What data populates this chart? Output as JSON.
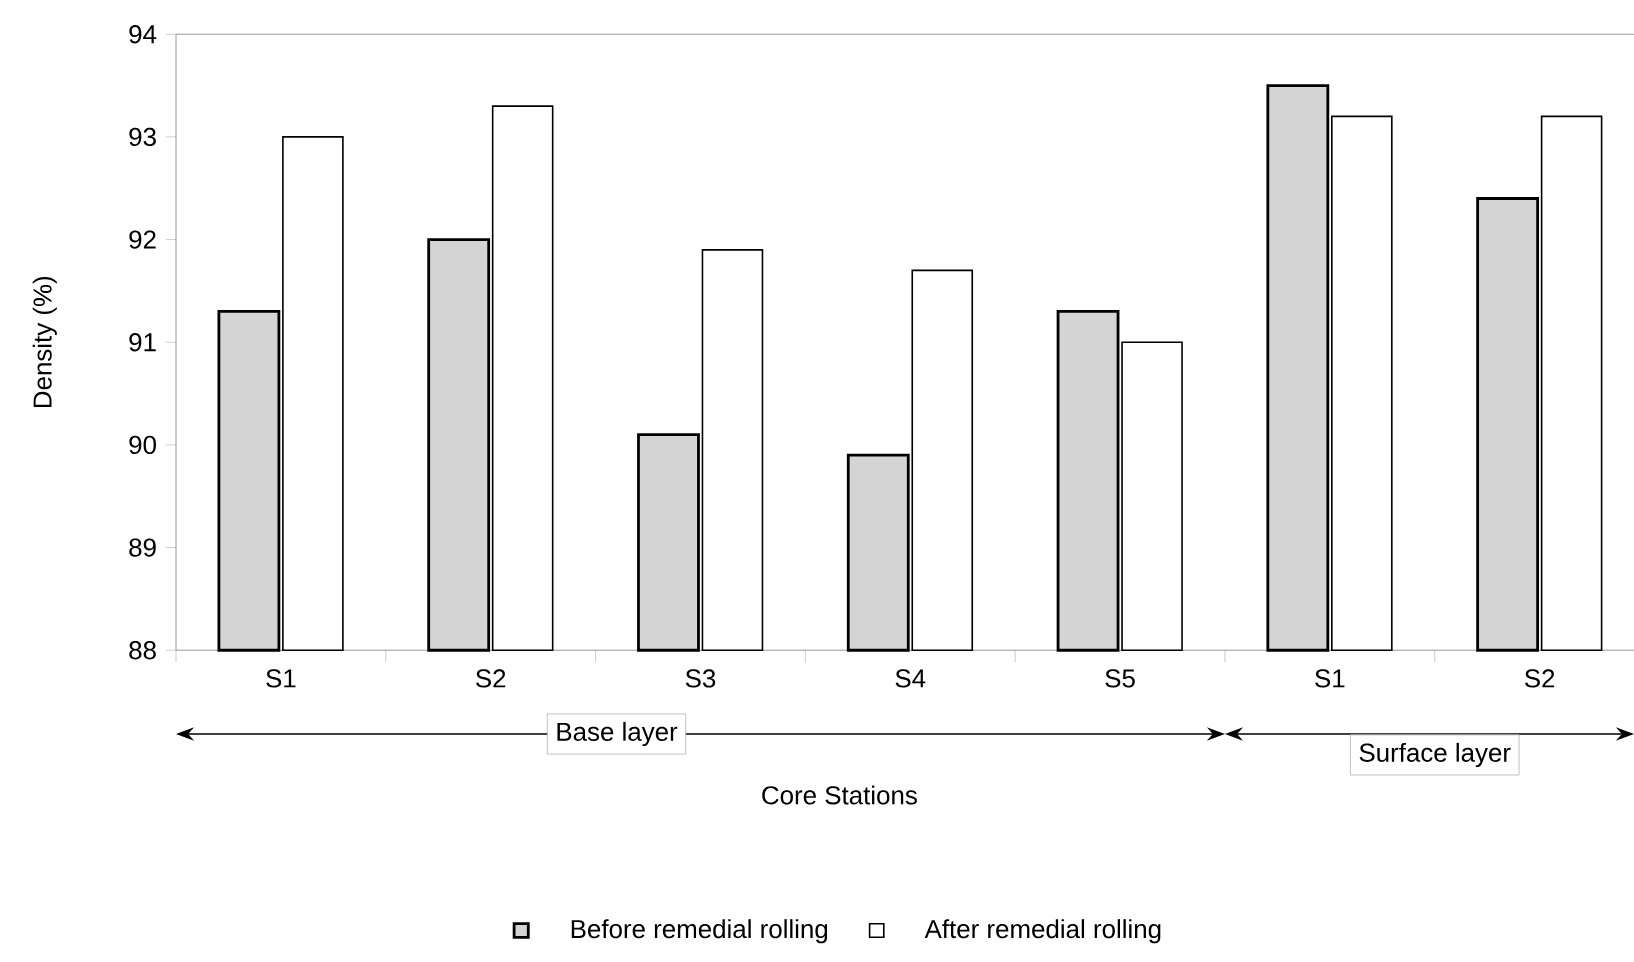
{
  "chart_data": {
    "type": "bar",
    "xlabel": "Core Stations",
    "ylabel": "Density (%)",
    "categories": [
      "S1",
      "S2",
      "S3",
      "S4",
      "S5",
      "S1",
      "S2"
    ],
    "series": [
      {
        "name": "Before remedial rolling",
        "color": "#d4d4d4",
        "values": [
          91.3,
          92.0,
          90.1,
          89.9,
          91.3,
          93.5,
          92.4
        ]
      },
      {
        "name": "After remedial rolling",
        "color": "#ffffff",
        "values": [
          93.0,
          93.3,
          91.9,
          91.7,
          91.0,
          93.2,
          93.2
        ]
      }
    ],
    "ylim": [
      88,
      94
    ],
    "yticks": [
      88,
      89,
      90,
      91,
      92,
      93,
      94
    ],
    "annotations": [
      "Base layer",
      "Surface layer"
    ],
    "legend": "bottom"
  }
}
